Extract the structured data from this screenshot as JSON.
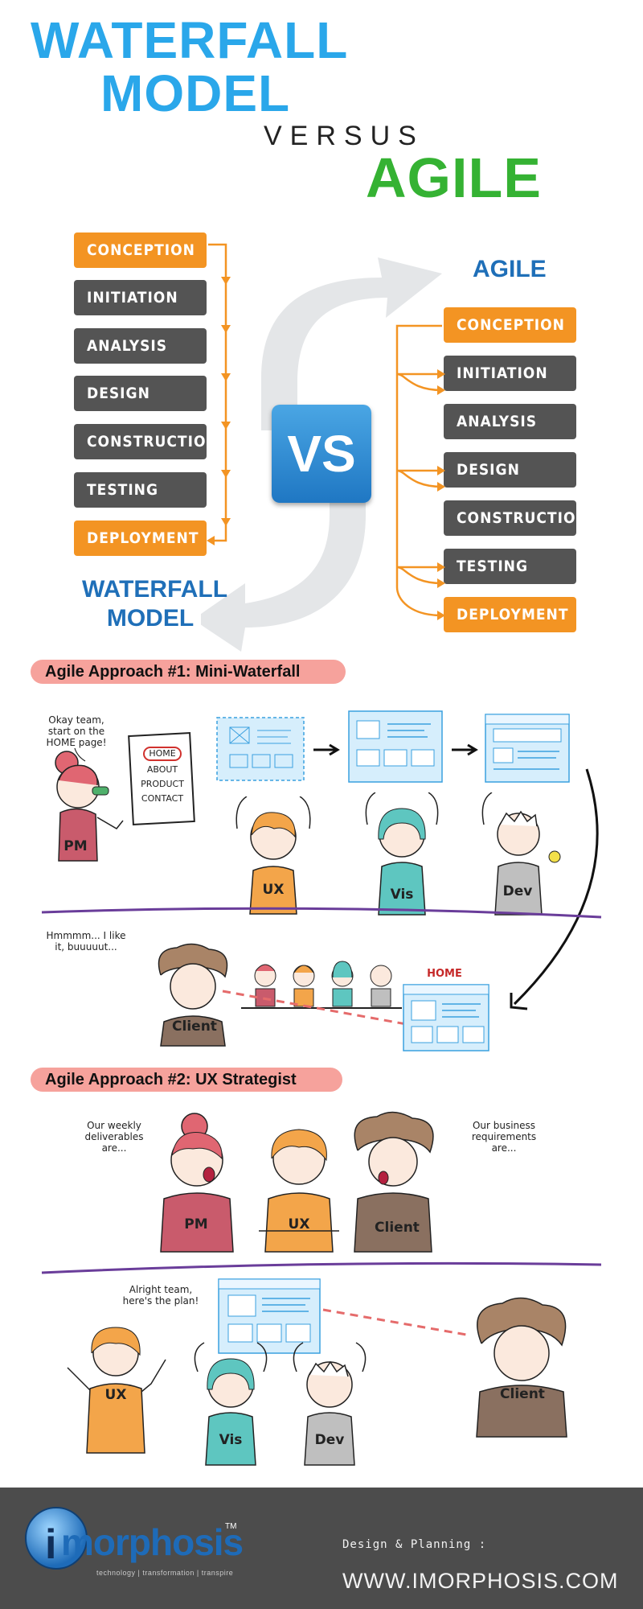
{
  "header": {
    "title_line1": "WATERFALL",
    "title_line2": "MODEL",
    "versus": "VERSUS",
    "agile": "AGILE"
  },
  "waterfall": {
    "label_line1": "WATERFALL",
    "label_line2": "MODEL",
    "steps": [
      "CONCEPTION",
      "INITIATION",
      "ANALYSIS",
      "DESIGN",
      "CONSTRUCTION",
      "TESTING",
      "DEPLOYMENT"
    ]
  },
  "agile_model": {
    "label": "AGILE",
    "steps": [
      "CONCEPTION",
      "INITIATION",
      "ANALYSIS",
      "DESIGN",
      "CONSTRUCTION",
      "TESTING",
      "DEPLOYMENT"
    ]
  },
  "vs_badge": "VS",
  "approach1": {
    "title": "Agile Approach #1: Mini-Waterfall",
    "pm_speech": "Okay team, start on the HOME page!",
    "sitemap": [
      "HOME",
      "ABOUT",
      "PRODUCT",
      "CONTACT"
    ],
    "roles": [
      "PM",
      "UX",
      "Vis",
      "Dev"
    ],
    "client_speech": "Hmmmm... I like it, buuuuut...",
    "client_label": "Client",
    "home_tag": "HOME"
  },
  "approach2": {
    "title": "Agile Approach #2: UX Strategist",
    "pm_speech": "Our weekly deliverables are...",
    "client_speech": "Our business requirements are...",
    "ux_speech": "Alright team, here's the plan!",
    "top_roles": [
      "PM",
      "UX",
      "Client"
    ],
    "bottom_roles": [
      "UX",
      "Vis",
      "Dev",
      "Client"
    ]
  },
  "footer": {
    "logo": "morphosis",
    "logo_i": "i",
    "tm": "TM",
    "tagline": "technology | transformation | transpire",
    "design_planning": "Design & Planning :",
    "url": "WWW.IMORPHOSIS.COM"
  },
  "colors": {
    "blue_title": "#2aa7ea",
    "green": "#35b233",
    "orange": "#f39423",
    "gray": "#545454",
    "navy": "#1f6fb8"
  }
}
